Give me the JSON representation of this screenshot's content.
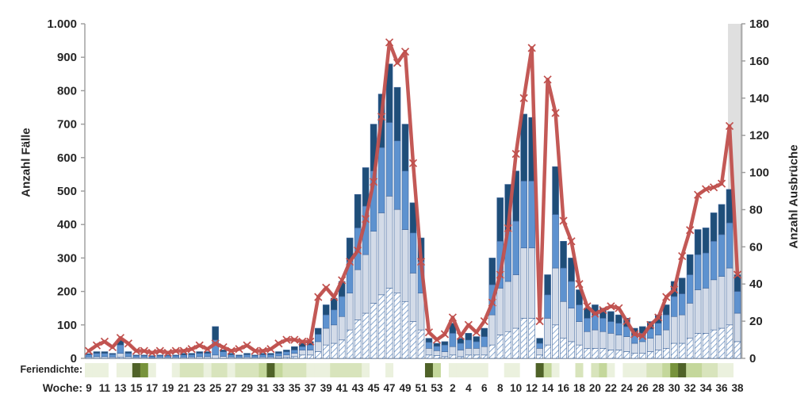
{
  "left_axis": {
    "title": "Anzahl Fälle",
    "ticks": [
      "0",
      "100",
      "200",
      "300",
      "400",
      "500",
      "600",
      "700",
      "800",
      "900",
      "1.000"
    ]
  },
  "right_axis": {
    "title": "Anzahl Ausbrüche",
    "ticks": [
      "0",
      "20",
      "40",
      "60",
      "80",
      "100",
      "120",
      "140",
      "160",
      "180"
    ]
  },
  "bottom": {
    "holiday_label": "Feriendichte:",
    "week_label": "Woche:"
  },
  "colors": {
    "bar_dark": "#1f4e79",
    "bar_medium": "#5e92cf",
    "bar_light": "#d3dbe8",
    "hatch_line": "#6b93c4",
    "bar_stroke": "#40669c",
    "line": "#c0504d",
    "axis": "#9b9b9b",
    "text": "#262626",
    "highlight": "#d9d9d9",
    "holiday_palette": [
      "#ffffff",
      "#ebf1de",
      "#d8e4bc",
      "#c4d79b",
      "#77933c",
      "#4f6228"
    ]
  },
  "chart_data": {
    "type": "bar",
    "subtype": "stacked-bars-with-line",
    "left_max": 1000,
    "right_max": 180,
    "x_tick_labels": [
      "9",
      "11",
      "13",
      "15",
      "17",
      "19",
      "21",
      "23",
      "25",
      "27",
      "29",
      "31",
      "33",
      "35",
      "37",
      "39",
      "41",
      "43",
      "45",
      "47",
      "49",
      "51",
      "53",
      "2",
      "4",
      "6",
      "8",
      "10",
      "12",
      "14",
      "16",
      "18",
      "20",
      "22",
      "24",
      "26",
      "28",
      "30",
      "32",
      "34",
      "36",
      "38"
    ],
    "weeks": [
      9,
      10,
      11,
      12,
      13,
      14,
      15,
      16,
      17,
      18,
      19,
      20,
      21,
      22,
      23,
      24,
      25,
      26,
      27,
      28,
      29,
      30,
      31,
      32,
      33,
      34,
      35,
      36,
      37,
      38,
      39,
      40,
      41,
      42,
      43,
      44,
      45,
      46,
      47,
      48,
      49,
      50,
      51,
      52,
      53,
      1,
      2,
      3,
      4,
      5,
      6,
      7,
      8,
      9,
      10,
      11,
      12,
      13,
      14,
      15,
      16,
      17,
      18,
      19,
      20,
      21,
      22,
      23,
      24,
      25,
      26,
      27,
      28,
      29,
      30,
      31,
      32,
      33,
      34,
      35,
      36,
      37,
      38
    ],
    "series": [
      {
        "name": "cases_hatched",
        "values": [
          0,
          0,
          0,
          0,
          3,
          0,
          0,
          0,
          0,
          0,
          0,
          0,
          0,
          0,
          0,
          0,
          0,
          0,
          0,
          0,
          0,
          0,
          0,
          0,
          2,
          3,
          5,
          10,
          10,
          20,
          40,
          45,
          55,
          85,
          115,
          135,
          165,
          190,
          210,
          195,
          170,
          110,
          85,
          10,
          8,
          5,
          10,
          5,
          10,
          10,
          10,
          40,
          70,
          80,
          90,
          120,
          120,
          10,
          40,
          100,
          60,
          50,
          40,
          30,
          30,
          30,
          25,
          25,
          20,
          15,
          15,
          20,
          25,
          30,
          45,
          45,
          60,
          75,
          75,
          85,
          90,
          100,
          50
        ]
      },
      {
        "name": "cases_light_blue",
        "values": [
          4,
          5,
          5,
          4,
          12,
          5,
          3,
          3,
          2,
          3,
          3,
          3,
          3,
          4,
          5,
          5,
          10,
          6,
          4,
          3,
          4,
          3,
          4,
          4,
          5,
          7,
          10,
          15,
          15,
          30,
          50,
          55,
          70,
          110,
          150,
          175,
          215,
          245,
          275,
          250,
          215,
          145,
          110,
          20,
          15,
          15,
          25,
          20,
          20,
          20,
          25,
          90,
          140,
          150,
          160,
          210,
          210,
          20,
          80,
          170,
          110,
          100,
          70,
          50,
          55,
          50,
          50,
          45,
          45,
          30,
          35,
          40,
          45,
          55,
          80,
          85,
          105,
          130,
          135,
          150,
          155,
          170,
          85
        ]
      },
      {
        "name": "cases_medium_blue",
        "values": [
          7,
          10,
          10,
          8,
          25,
          10,
          5,
          5,
          4,
          5,
          5,
          5,
          7,
          7,
          10,
          10,
          45,
          14,
          7,
          5,
          7,
          5,
          7,
          7,
          8,
          10,
          10,
          10,
          15,
          22,
          40,
          45,
          60,
          95,
          125,
          145,
          180,
          195,
          220,
          205,
          175,
          120,
          95,
          18,
          13,
          20,
          40,
          20,
          25,
          20,
          30,
          90,
          140,
          150,
          160,
          200,
          200,
          15,
          70,
          160,
          100,
          80,
          50,
          40,
          45,
          40,
          35,
          35,
          30,
          25,
          25,
          28,
          35,
          45,
          60,
          63,
          85,
          105,
          105,
          115,
          125,
          135,
          65
        ]
      },
      {
        "name": "cases_dark_blue",
        "values": [
          3,
          5,
          5,
          3,
          15,
          5,
          2,
          2,
          2,
          2,
          2,
          2,
          5,
          4,
          5,
          5,
          40,
          5,
          4,
          2,
          4,
          2,
          4,
          4,
          5,
          5,
          10,
          10,
          10,
          18,
          30,
          35,
          45,
          70,
          100,
          115,
          140,
          160,
          175,
          160,
          140,
          90,
          70,
          12,
          9,
          10,
          30,
          15,
          20,
          15,
          25,
          80,
          130,
          140,
          150,
          200,
          190,
          15,
          60,
          143,
          80,
          70,
          45,
          30,
          30,
          30,
          30,
          25,
          25,
          20,
          20,
          22,
          25,
          30,
          45,
          47,
          60,
          75,
          75,
          85,
          90,
          100,
          50
        ]
      }
    ],
    "line": {
      "name": "outbreaks",
      "axis": "right",
      "values": [
        4,
        7,
        9,
        6,
        11,
        8,
        4,
        4,
        3,
        4,
        3,
        4,
        4,
        5,
        7,
        5,
        8,
        6,
        4,
        5,
        7,
        4,
        4,
        5,
        8,
        10,
        10,
        9,
        9,
        33,
        38,
        33,
        42,
        52,
        58,
        75,
        95,
        130,
        170,
        159,
        165,
        105,
        52,
        14,
        10,
        13,
        22,
        12,
        18,
        14,
        20,
        30,
        45,
        70,
        110,
        140,
        167,
        20,
        150,
        132,
        74,
        63,
        40,
        28,
        24,
        26,
        28,
        27,
        20,
        13,
        12,
        18,
        22,
        33,
        37,
        55,
        69,
        88,
        91,
        92,
        94,
        125,
        45
      ]
    },
    "holiday_density": [
      1,
      1,
      1,
      0,
      1,
      1,
      5,
      4,
      1,
      0,
      0,
      1,
      2,
      2,
      2,
      1,
      2,
      2,
      1,
      2,
      2,
      2,
      3,
      5,
      3,
      2,
      2,
      2,
      1,
      1,
      1,
      2,
      2,
      2,
      2,
      1,
      0,
      0,
      1,
      0,
      0,
      0,
      0,
      5,
      3,
      0,
      1,
      1,
      1,
      1,
      1,
      0,
      0,
      1,
      1,
      0,
      0,
      5,
      3,
      1,
      0,
      0,
      2,
      0,
      2,
      3,
      1,
      0,
      1,
      1,
      1,
      2,
      2,
      3,
      4,
      5,
      3,
      3,
      2,
      2,
      1,
      1,
      0
    ],
    "highlight_last_week": true,
    "grid": false,
    "legend": "none"
  }
}
